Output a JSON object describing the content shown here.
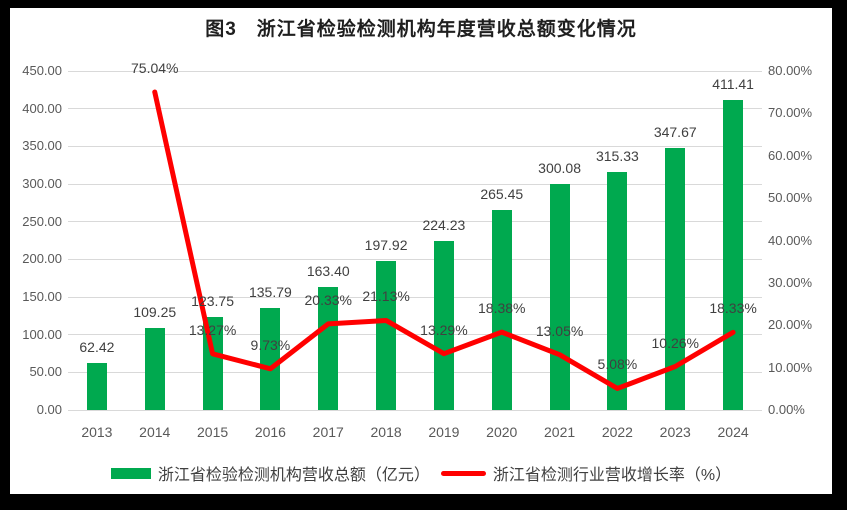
{
  "figure": {
    "background": "#000000",
    "panel_background": "#ffffff"
  },
  "chart_data": {
    "type": "bar",
    "subtype": "bar+line combo, dual axis",
    "title": "图3　浙江省检验检测机构年度营收总额变化情况",
    "categories": [
      "2013",
      "2014",
      "2015",
      "2016",
      "2017",
      "2018",
      "2019",
      "2020",
      "2021",
      "2022",
      "2023",
      "2024"
    ],
    "series": [
      {
        "name": "浙江省检验检测机构营收总额（亿元）",
        "type": "bar",
        "axis": "left",
        "color": "#00A94F",
        "values": [
          62.42,
          109.25,
          123.75,
          135.79,
          163.4,
          197.92,
          224.23,
          265.45,
          300.08,
          315.33,
          347.67,
          411.41
        ],
        "labels": [
          "62.42",
          "109.25",
          "123.75",
          "135.79",
          "163.40",
          "197.92",
          "224.23",
          "265.45",
          "300.08",
          "315.33",
          "347.67",
          "411.41"
        ]
      },
      {
        "name": "浙江省检测行业营收增长率（%）",
        "type": "line",
        "axis": "right",
        "color": "#FF0000",
        "values": [
          null,
          75.04,
          13.27,
          9.73,
          20.33,
          21.13,
          13.29,
          18.38,
          13.05,
          5.08,
          10.26,
          18.33
        ],
        "labels": [
          "",
          "75.04%",
          "13.27%",
          "9.73%",
          "20.33%",
          "21.13%",
          "13.29%",
          "18.38%",
          "13.05%",
          "5.08%",
          "10.26%",
          "18.33%"
        ]
      }
    ],
    "axis_left": {
      "min": 0,
      "max": 450,
      "step": 50,
      "tick_labels": [
        "0.00",
        "50.00",
        "100.00",
        "150.00",
        "200.00",
        "250.00",
        "300.00",
        "350.00",
        "400.00",
        "450.00"
      ]
    },
    "axis_right": {
      "min": 0,
      "max": 80,
      "step": 10,
      "tick_labels": [
        "0.00%",
        "10.00%",
        "20.00%",
        "30.00%",
        "40.00%",
        "50.00%",
        "60.00%",
        "70.00%",
        "80.00%"
      ]
    },
    "grid": "horizontal",
    "legend_position": "bottom"
  },
  "colors": {
    "bar": "#00A94F",
    "line": "#FF0000",
    "gridline": "#D9D9D9",
    "axis_text": "#595959",
    "label_text": "#404040",
    "title_text": "#1F1F1F"
  }
}
